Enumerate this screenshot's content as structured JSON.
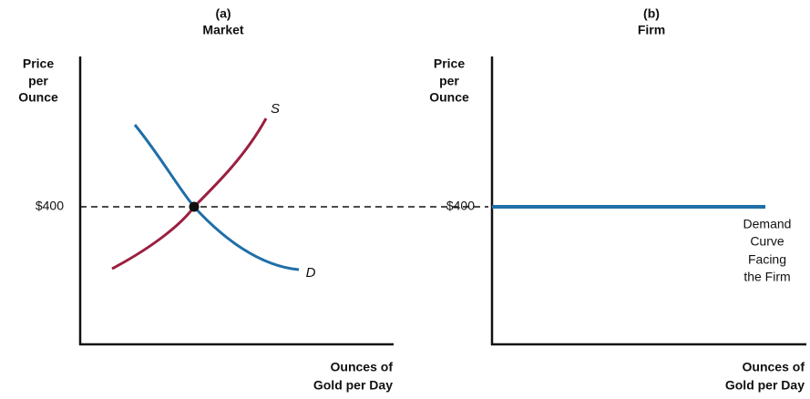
{
  "panels": [
    {
      "label": "(a)",
      "title": "Market",
      "y_label": [
        "Price",
        "per",
        "Ounce"
      ],
      "price": "$400",
      "x_label": [
        "Ounces of",
        "Gold per Day"
      ],
      "supply_label": "S",
      "demand_label": "D"
    },
    {
      "label": "(b)",
      "title": "Firm",
      "y_label": [
        "Price",
        "per",
        "Ounce"
      ],
      "price": "$400",
      "x_label": [
        "Ounces of",
        "Gold per Day"
      ],
      "demand_note": [
        "Demand",
        "Curve",
        "Facing",
        "the Firm"
      ]
    }
  ]
}
